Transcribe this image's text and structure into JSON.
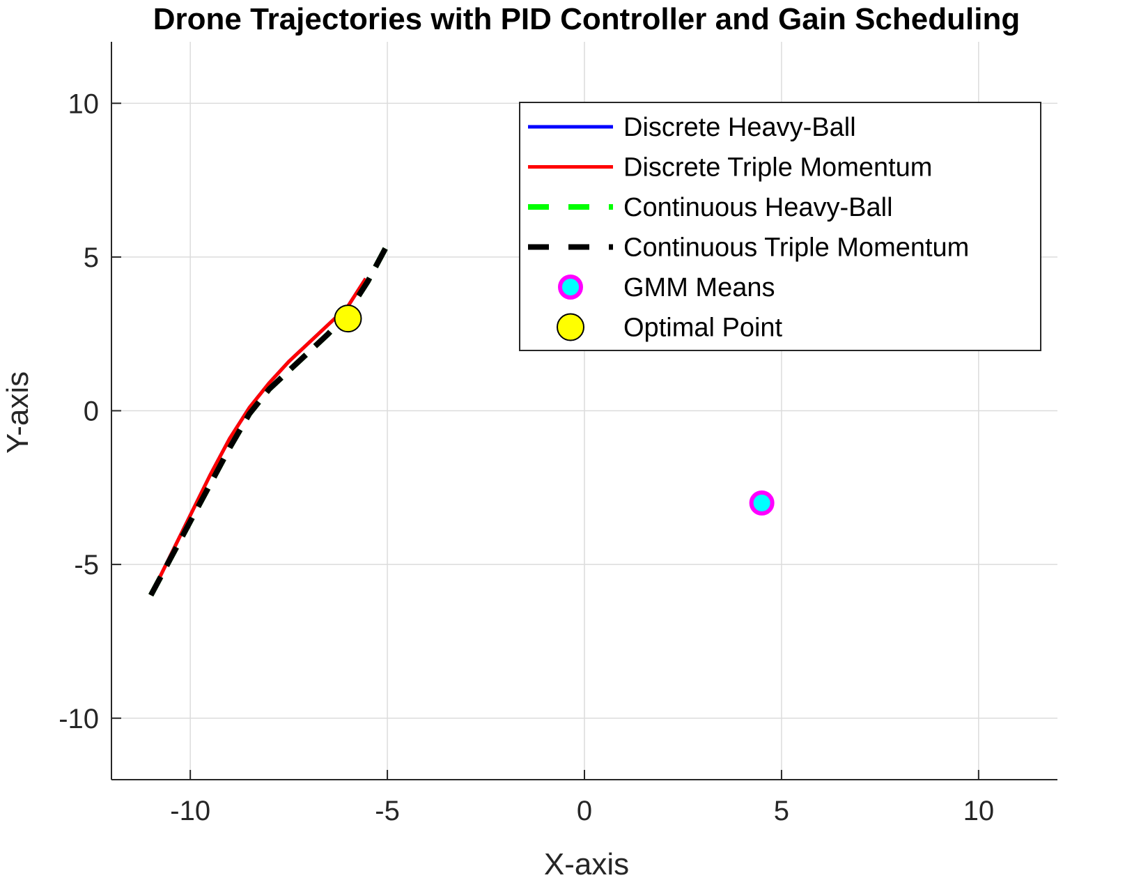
{
  "chart_data": {
    "type": "line",
    "title": "Drone Trajectories with PID Controller and Gain Scheduling",
    "xlabel": "X-axis",
    "ylabel": "Y-axis",
    "xlim": [
      -12,
      12
    ],
    "ylim": [
      -12,
      12
    ],
    "xticks": [
      -10,
      -5,
      0,
      5,
      10
    ],
    "yticks": [
      -10,
      -5,
      0,
      5,
      10
    ],
    "xtick_labels": [
      "-10",
      "-5",
      "0",
      "5",
      "10"
    ],
    "ytick_labels": [
      "-10",
      "-5",
      "0",
      "5",
      "10"
    ],
    "grid": true,
    "legend_position": "top-right",
    "series": [
      {
        "name": "Discrete Heavy-Ball",
        "style": "solid",
        "color": "#0000ff",
        "x": [
          -11.0,
          -10.5,
          -10.0,
          -9.5,
          -9.0,
          -8.5,
          -8.0,
          -7.5,
          -7.0,
          -6.5,
          -6.0,
          -5.55
        ],
        "y": [
          -6.0,
          -4.7,
          -3.4,
          -2.1,
          -0.9,
          0.1,
          0.9,
          1.6,
          2.2,
          2.8,
          3.4,
          4.3
        ]
      },
      {
        "name": "Discrete Triple Momentum",
        "style": "solid",
        "color": "#ff0000",
        "x": [
          -11.0,
          -10.5,
          -10.0,
          -9.5,
          -9.0,
          -8.5,
          -8.0,
          -7.5,
          -7.0,
          -6.5,
          -6.0,
          -5.55
        ],
        "y": [
          -6.0,
          -4.7,
          -3.4,
          -2.1,
          -0.9,
          0.1,
          0.9,
          1.6,
          2.2,
          2.8,
          3.4,
          4.3
        ]
      },
      {
        "name": "Continuous Heavy-Ball",
        "style": "dashed",
        "color": "#00ff00",
        "x": [
          -11.0,
          -10.5,
          -10.0,
          -9.5,
          -9.0,
          -8.5,
          -8.0,
          -7.5,
          -7.0,
          -6.5,
          -6.0,
          -5.5,
          -5.0
        ],
        "y": [
          -6.0,
          -4.8,
          -3.6,
          -2.4,
          -1.2,
          -0.1,
          0.7,
          1.3,
          1.9,
          2.5,
          3.2,
          4.2,
          5.4
        ]
      },
      {
        "name": "Continuous Triple Momentum",
        "style": "dashed",
        "color": "#000000",
        "x": [
          -11.0,
          -10.5,
          -10.0,
          -9.5,
          -9.0,
          -8.5,
          -8.0,
          -7.5,
          -7.0,
          -6.5,
          -6.0,
          -5.5,
          -5.0
        ],
        "y": [
          -6.0,
          -4.8,
          -3.6,
          -2.4,
          -1.2,
          -0.1,
          0.7,
          1.3,
          1.9,
          2.5,
          3.2,
          4.2,
          5.4
        ]
      }
    ],
    "markers": [
      {
        "name": "GMM Means",
        "color_fill": "#00ffff",
        "color_edge": "#ff00ff",
        "points": [
          [
            4.5,
            -3.0
          ]
        ]
      },
      {
        "name": "Optimal Point",
        "color_fill": "#ffff00",
        "color_edge": "#000000",
        "points": [
          [
            -6.0,
            3.0
          ]
        ]
      }
    ]
  }
}
